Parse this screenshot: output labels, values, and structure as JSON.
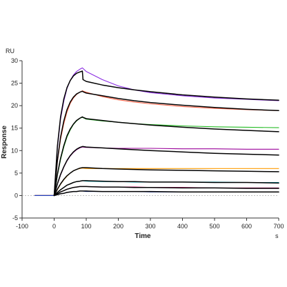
{
  "chart_data": {
    "type": "line",
    "title": "",
    "xlabel": "Time",
    "ylabel": "Response",
    "xunit": "s",
    "yunit": "RU",
    "xlim": [
      -100,
      700
    ],
    "ylim": [
      -5,
      30
    ],
    "xticks": [
      -100,
      0,
      100,
      200,
      300,
      400,
      500,
      600,
      700
    ],
    "yticks": [
      -5,
      0,
      5,
      10,
      15,
      20,
      25,
      30
    ],
    "grid": false,
    "baseline_zero_line": true,
    "series": [
      {
        "color": "#8a2be2",
        "x": [
          -60,
          0,
          10,
          20,
          30,
          40,
          50,
          60,
          70,
          80,
          88,
          100,
          150,
          200,
          250,
          300,
          400,
          500,
          600,
          700
        ],
        "y": [
          0,
          0,
          10.5,
          17.0,
          21.0,
          23.8,
          25.6,
          26.8,
          27.6,
          28.1,
          28.4,
          27.6,
          25.8,
          24.4,
          23.5,
          22.9,
          22.2,
          21.7,
          21.4,
          21.1
        ]
      },
      {
        "color": "#ff6347",
        "x": [
          -60,
          0,
          10,
          20,
          30,
          40,
          50,
          60,
          70,
          80,
          88,
          100,
          150,
          200,
          250,
          300,
          400,
          500,
          600,
          700
        ],
        "y": [
          0,
          0,
          7.5,
          12.5,
          16.0,
          18.6,
          20.5,
          21.7,
          22.5,
          23.0,
          23.3,
          23.0,
          22.0,
          21.3,
          20.8,
          20.4,
          19.8,
          19.4,
          19.1,
          18.9
        ]
      },
      {
        "color": "#22bb22",
        "x": [
          -60,
          0,
          10,
          20,
          30,
          40,
          50,
          60,
          70,
          80,
          88,
          100,
          150,
          200,
          250,
          300,
          400,
          500,
          600,
          700
        ],
        "y": [
          0,
          0,
          4.5,
          8.0,
          10.8,
          13.0,
          14.6,
          15.8,
          16.6,
          17.2,
          17.4,
          17.0,
          16.6,
          16.3,
          16.0,
          15.8,
          15.5,
          15.3,
          15.2,
          15.1
        ]
      },
      {
        "color": "#990099",
        "x": [
          -60,
          0,
          10,
          20,
          30,
          40,
          50,
          60,
          70,
          80,
          88,
          100,
          150,
          200,
          250,
          300,
          400,
          500,
          600,
          700
        ],
        "y": [
          0,
          0,
          2.5,
          4.6,
          6.3,
          7.7,
          8.8,
          9.6,
          10.2,
          10.6,
          10.8,
          10.7,
          10.6,
          10.5,
          10.5,
          10.5,
          10.4,
          10.4,
          10.3,
          10.3
        ]
      },
      {
        "color": "#ff9900",
        "x": [
          -60,
          0,
          10,
          20,
          30,
          40,
          50,
          60,
          70,
          80,
          88,
          100,
          150,
          200,
          250,
          300,
          400,
          500,
          600,
          700
        ],
        "y": [
          0,
          0,
          1.3,
          2.5,
          3.5,
          4.3,
          5.0,
          5.5,
          5.8,
          6.0,
          6.1,
          6.0,
          6.0,
          6.0,
          6.0,
          6.0,
          6.0,
          6.0,
          6.0,
          6.0
        ]
      },
      {
        "color": "#00bbcc",
        "x": [
          -60,
          0,
          10,
          20,
          30,
          40,
          50,
          60,
          70,
          80,
          88,
          100,
          150,
          200,
          250,
          300,
          400,
          500,
          600,
          700
        ],
        "y": [
          0,
          0,
          0.7,
          1.3,
          1.8,
          2.3,
          2.6,
          2.9,
          3.1,
          3.2,
          3.3,
          3.2,
          3.1,
          3.1,
          3.0,
          3.0,
          3.0,
          3.0,
          2.9,
          2.9
        ]
      },
      {
        "color": "#cc0066",
        "x": [
          -60,
          0,
          10,
          20,
          30,
          40,
          50,
          60,
          70,
          80,
          88,
          100,
          150,
          200,
          250,
          300,
          400,
          500,
          600,
          700
        ],
        "y": [
          0,
          0,
          0.4,
          0.8,
          1.1,
          1.4,
          1.6,
          1.8,
          1.9,
          2.0,
          2.0,
          2.0,
          1.9,
          1.9,
          1.9,
          1.8,
          1.8,
          1.7,
          1.7,
          1.7
        ]
      },
      {
        "color": "#1f3fbf",
        "x": [
          -60,
          0,
          10,
          20,
          30,
          40,
          50,
          60,
          70,
          80,
          88,
          100,
          150,
          200,
          250,
          300,
          400,
          500,
          600,
          700
        ],
        "y": [
          0,
          0,
          0.2,
          0.4,
          0.5,
          0.7,
          0.8,
          0.9,
          0.9,
          1.0,
          1.0,
          0.9,
          0.9,
          0.9,
          0.9,
          0.8,
          0.8,
          0.8,
          0.8,
          0.8
        ]
      },
      {
        "color": "#000000",
        "x": [
          0,
          10,
          20,
          30,
          40,
          50,
          60,
          70,
          80,
          88,
          90,
          100,
          150,
          200,
          250,
          300,
          400,
          500,
          600,
          700
        ],
        "y": [
          0,
          11.0,
          17.5,
          21.5,
          24.0,
          25.6,
          26.6,
          27.2,
          27.5,
          27.7,
          25.8,
          25.4,
          24.6,
          24.0,
          23.5,
          23.1,
          22.4,
          21.9,
          21.5,
          21.2
        ]
      },
      {
        "color": "#000000",
        "x": [
          0,
          10,
          20,
          30,
          40,
          50,
          60,
          70,
          80,
          88,
          90,
          100,
          150,
          200,
          250,
          300,
          400,
          500,
          600,
          700
        ],
        "y": [
          0,
          7.8,
          13.0,
          16.6,
          19.1,
          20.8,
          21.9,
          22.6,
          23.0,
          23.2,
          23.1,
          22.8,
          22.2,
          21.6,
          21.1,
          20.7,
          20.1,
          19.6,
          19.2,
          18.9
        ]
      },
      {
        "color": "#000000",
        "x": [
          0,
          10,
          20,
          30,
          40,
          50,
          60,
          70,
          80,
          88,
          90,
          100,
          150,
          200,
          250,
          300,
          400,
          500,
          600,
          700
        ],
        "y": [
          0,
          4.7,
          8.3,
          11.1,
          13.3,
          14.8,
          15.9,
          16.7,
          17.2,
          17.5,
          17.4,
          17.1,
          16.7,
          16.3,
          16.0,
          15.7,
          15.2,
          14.8,
          14.5,
          14.2
        ]
      },
      {
        "color": "#000000",
        "x": [
          0,
          10,
          20,
          30,
          40,
          50,
          60,
          70,
          80,
          88,
          90,
          100,
          150,
          200,
          250,
          300,
          400,
          500,
          600,
          700
        ],
        "y": [
          0,
          2.6,
          4.7,
          6.4,
          7.8,
          8.9,
          9.7,
          10.3,
          10.7,
          10.9,
          10.9,
          10.8,
          10.6,
          10.4,
          10.2,
          10.0,
          9.7,
          9.4,
          9.2,
          9.0
        ]
      },
      {
        "color": "#000000",
        "x": [
          0,
          10,
          20,
          30,
          40,
          50,
          60,
          70,
          80,
          88,
          90,
          100,
          150,
          200,
          250,
          300,
          400,
          500,
          600,
          700
        ],
        "y": [
          0,
          1.4,
          2.6,
          3.6,
          4.4,
          5.0,
          5.5,
          5.8,
          6.1,
          6.2,
          6.2,
          6.2,
          6.0,
          5.9,
          5.8,
          5.7,
          5.6,
          5.5,
          5.4,
          5.3
        ]
      },
      {
        "color": "#000000",
        "x": [
          0,
          10,
          20,
          30,
          40,
          50,
          60,
          70,
          80,
          88,
          90,
          100,
          150,
          200,
          250,
          300,
          400,
          500,
          600,
          700
        ],
        "y": [
          0,
          0.7,
          1.3,
          1.8,
          2.3,
          2.6,
          2.9,
          3.1,
          3.2,
          3.3,
          3.3,
          3.3,
          3.2,
          3.1,
          3.1,
          3.0,
          3.0,
          2.9,
          2.9,
          2.8
        ]
      },
      {
        "color": "#000000",
        "x": [
          0,
          10,
          20,
          30,
          40,
          50,
          60,
          70,
          80,
          88,
          90,
          100,
          150,
          200,
          250,
          300,
          400,
          500,
          600,
          700
        ],
        "y": [
          0,
          0.4,
          0.8,
          1.1,
          1.4,
          1.6,
          1.8,
          1.9,
          2.0,
          2.0,
          2.0,
          2.0,
          1.9,
          1.9,
          1.8,
          1.8,
          1.7,
          1.7,
          1.6,
          1.6
        ]
      },
      {
        "color": "#000000",
        "x": [
          0,
          10,
          20,
          30,
          40,
          50,
          60,
          70,
          80,
          88,
          90,
          100,
          150,
          200,
          250,
          300,
          400,
          500,
          600,
          700
        ],
        "y": [
          0,
          0.2,
          0.4,
          0.5,
          0.7,
          0.8,
          0.9,
          0.9,
          1.0,
          1.0,
          1.0,
          1.0,
          0.9,
          0.9,
          0.9,
          0.9,
          0.8,
          0.8,
          0.8,
          0.8
        ]
      }
    ]
  }
}
